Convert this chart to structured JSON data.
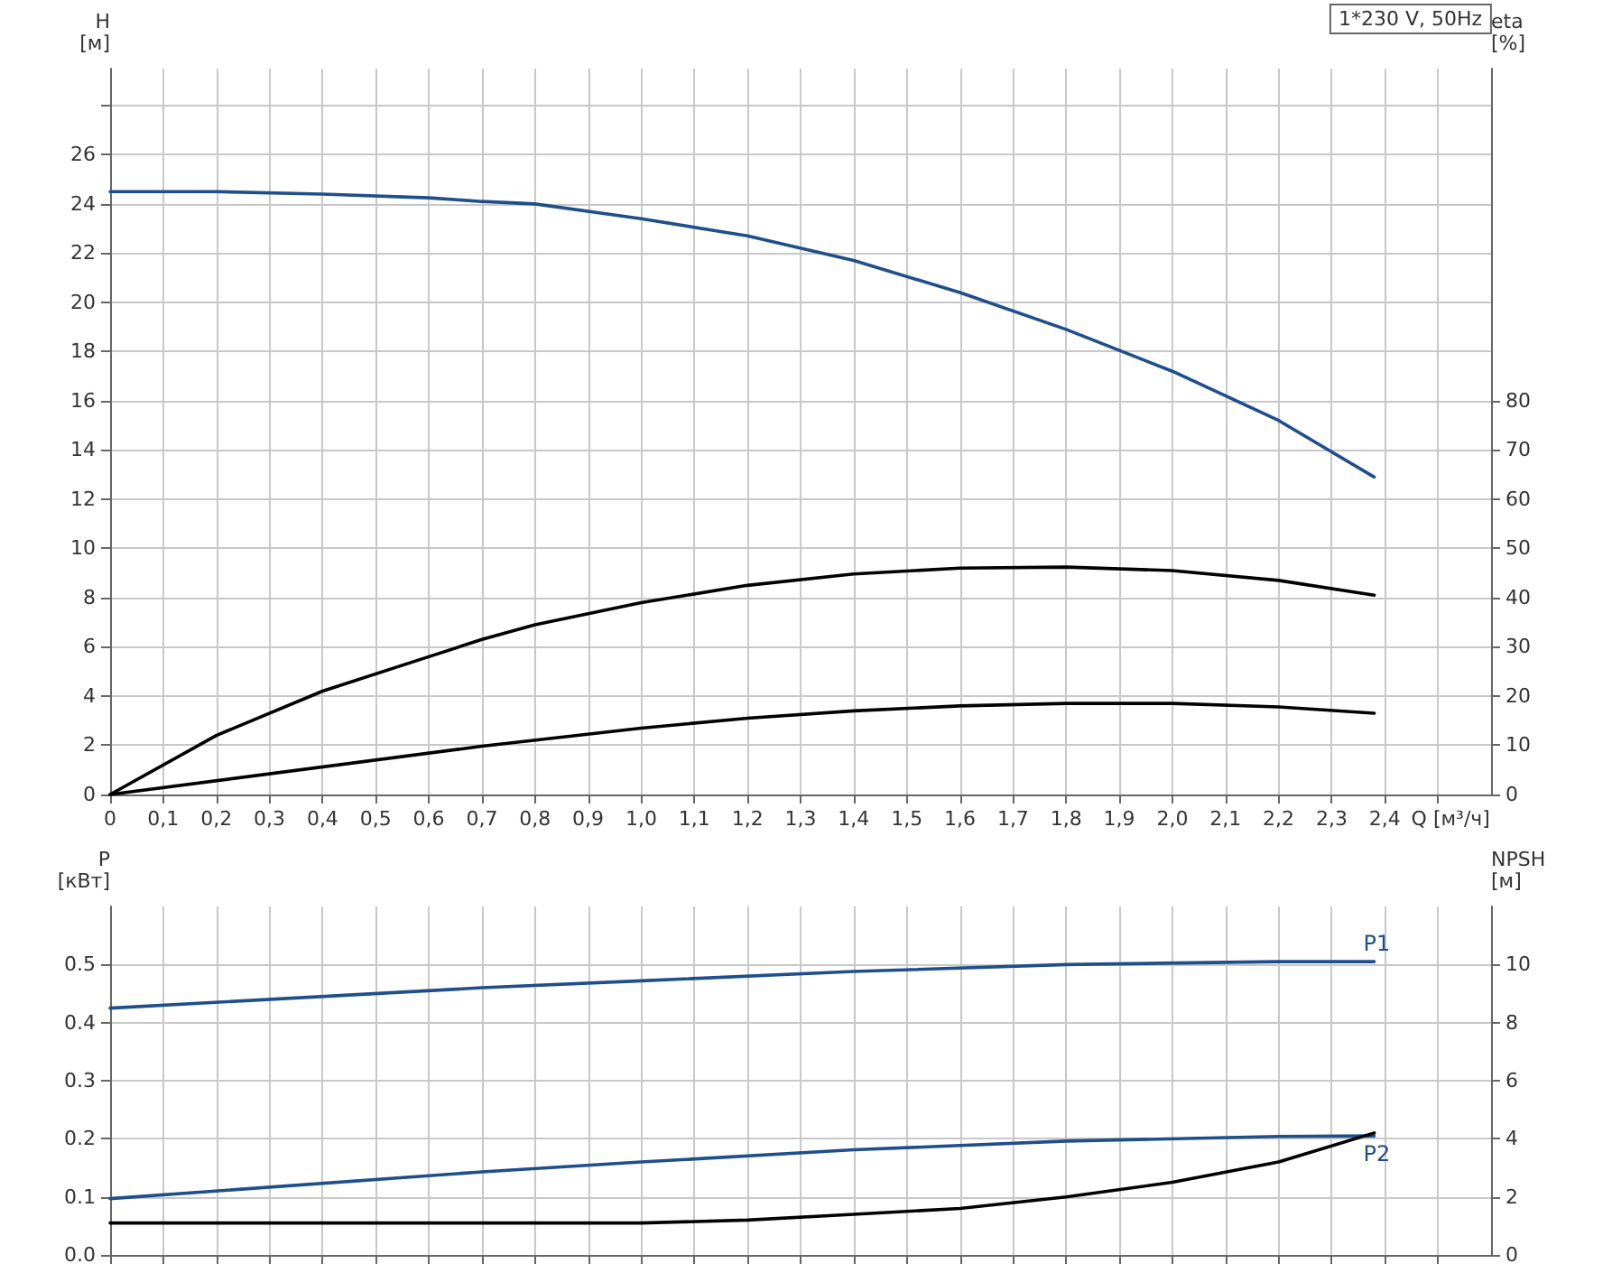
{
  "chart_data": [
    {
      "type": "line",
      "title": "1*230 V, 50Hz",
      "xlabel": "Q [м³/ч]",
      "ylabel": "H\n[м]",
      "y2label": "eta\n[%]",
      "xlim": [
        0,
        2.6
      ],
      "xticks": [
        0,
        {
          "value": 0.1,
          "label": "0,1"
        },
        {
          "value": 0.2,
          "label": "0,2"
        },
        {
          "value": 0.3,
          "label": "0,3"
        },
        {
          "value": 0.4,
          "label": "0,4"
        },
        {
          "value": 0.5,
          "label": "0,5"
        },
        {
          "value": 0.6,
          "label": "0,6"
        },
        {
          "value": 0.7,
          "label": "0,7"
        },
        {
          "value": 0.8,
          "label": "0,8"
        },
        {
          "value": 0.9,
          "label": "0,9"
        },
        {
          "value": 1.0,
          "label": "1,0"
        },
        {
          "value": 1.1,
          "label": "1,1"
        },
        {
          "value": 1.2,
          "label": "1,2"
        },
        {
          "value": 1.3,
          "label": "1,3"
        },
        {
          "value": 1.4,
          "label": "1,4"
        },
        {
          "value": 1.5,
          "label": "1,5"
        },
        {
          "value": 1.6,
          "label": "1,6"
        },
        {
          "value": 1.7,
          "label": "1,7"
        },
        {
          "value": 1.8,
          "label": "1,8"
        },
        {
          "value": 1.9,
          "label": "1,9"
        },
        {
          "value": 2.0,
          "label": "2,0"
        },
        {
          "value": 2.1,
          "label": "2,1"
        },
        {
          "value": 2.2,
          "label": "2,2"
        },
        {
          "value": 2.3,
          "label": "2,3"
        },
        {
          "value": 2.4,
          "label": "2,4"
        },
        {
          "value": 2.5,
          "label": null
        }
      ],
      "ylim": [
        0,
        29.5
      ],
      "yticks": [
        0,
        2,
        4,
        6,
        8,
        10,
        12,
        14,
        16,
        18,
        20,
        22,
        24,
        26,
        {
          "value": 28,
          "label": null
        }
      ],
      "y2lim": [
        0,
        147.5
      ],
      "y2ticks": [
        0,
        10,
        20,
        30,
        40,
        50,
        60,
        70,
        80
      ],
      "grid": true,
      "legend": false,
      "marker": "none",
      "series": [
        {
          "color": "#1f4e8c",
          "x": [
            0,
            0.2,
            0.4,
            0.6,
            0.7,
            0.8,
            1.0,
            1.2,
            1.4,
            1.6,
            1.8,
            2.0,
            2.2,
            2.38
          ],
          "values": [
            24.5,
            24.5,
            24.4,
            24.25,
            24.1,
            24.0,
            23.4,
            22.7,
            21.7,
            20.4,
            18.9,
            17.2,
            15.2,
            12.9
          ]
        },
        {
          "color": "#000000",
          "axis": "y2",
          "x": [
            0,
            0.2,
            0.4,
            0.6,
            0.7,
            0.8,
            1.0,
            1.2,
            1.4,
            1.6,
            1.8,
            2.0,
            2.2,
            2.38
          ],
          "values": [
            0,
            12,
            21,
            28,
            31.5,
            34.5,
            39,
            42.5,
            44.8,
            46,
            46.2,
            45.5,
            43.5,
            40.5
          ]
        },
        {
          "color": "#000000",
          "axis": "y2",
          "x": [
            0,
            0.7,
            1.0,
            1.2,
            1.4,
            1.6,
            1.8,
            2.0,
            2.2,
            2.38
          ],
          "values": [
            0,
            9.8,
            13.5,
            15.5,
            17,
            18,
            18.5,
            18.5,
            17.8,
            16.5
          ]
        }
      ]
    },
    {
      "type": "line",
      "ylabel": "P\n[кВт]",
      "y2label": "NPSH\n[м]",
      "tick_labels": "y",
      "xlim": [
        0,
        2.6
      ],
      "xticks": [
        0,
        0.1,
        0.2,
        0.3,
        0.4,
        0.5,
        0.6,
        0.7,
        0.8,
        0.9,
        1.0,
        1.1,
        1.2,
        1.3,
        1.4,
        1.5,
        1.6,
        1.7,
        1.8,
        1.9,
        2.0,
        2.1,
        2.2,
        2.3,
        2.4,
        2.5
      ],
      "ylim": [
        0,
        0.6
      ],
      "yticks": [
        {
          "value": 0,
          "label": "0.0"
        },
        0.1,
        0.2,
        0.3,
        0.4,
        0.5
      ],
      "y2lim": [
        0,
        12
      ],
      "y2ticks": [
        0,
        2,
        4,
        6,
        8,
        10
      ],
      "grid": true,
      "legend": false,
      "marker": "none",
      "series": [
        {
          "name": "P1",
          "color": "#1f4e8c",
          "x": [
            0,
            0.7,
            1.0,
            1.4,
            1.8,
            2.2,
            2.38
          ],
          "values": [
            0.425,
            0.46,
            0.472,
            0.488,
            0.5,
            0.505,
            0.505
          ]
        },
        {
          "name": "P2",
          "color": "#1f4e8c",
          "x": [
            0,
            0.7,
            1.0,
            1.4,
            1.8,
            2.2,
            2.38
          ],
          "values": [
            0.097,
            0.143,
            0.16,
            0.181,
            0.196,
            0.204,
            0.205
          ]
        },
        {
          "color": "#000000",
          "axis": "y2",
          "x": [
            0,
            0.7,
            1.0,
            1.2,
            1.4,
            1.6,
            1.8,
            2.0,
            2.2,
            2.38
          ],
          "values": [
            1.1,
            1.1,
            1.1,
            1.2,
            1.4,
            1.6,
            2.0,
            2.5,
            3.2,
            4.2
          ]
        }
      ]
    }
  ]
}
